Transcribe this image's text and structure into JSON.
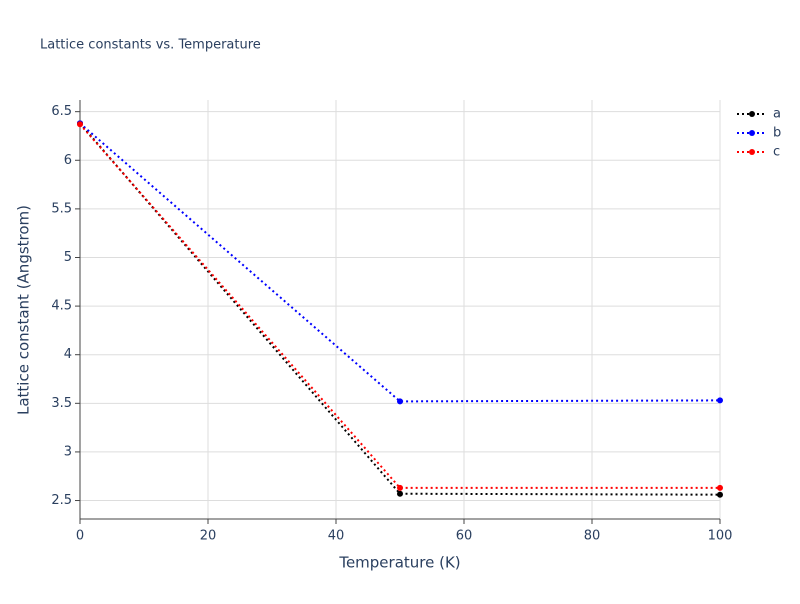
{
  "chart_data": {
    "type": "line",
    "title": "Lattice constants vs. Temperature",
    "x_label": "Temperature (K)",
    "y_label": "Lattice constant (Angstrom)",
    "x": [
      0,
      50,
      100
    ],
    "series": [
      {
        "name": "a",
        "color": "#000000",
        "values": [
          6.38,
          2.57,
          2.56
        ]
      },
      {
        "name": "b",
        "color": "#0000ff",
        "values": [
          6.38,
          3.52,
          3.53
        ]
      },
      {
        "name": "c",
        "color": "#ff0000",
        "values": [
          6.37,
          2.63,
          2.63
        ]
      }
    ],
    "xlim": [
      0,
      100
    ],
    "xticks": [
      0,
      20,
      40,
      60,
      80,
      100
    ],
    "ylim": [
      2.31,
      6.62
    ],
    "yticks": [
      2.5,
      3,
      3.5,
      4,
      4.5,
      5,
      5.5,
      6,
      6.5
    ],
    "grid": true,
    "legend": "top-right"
  }
}
